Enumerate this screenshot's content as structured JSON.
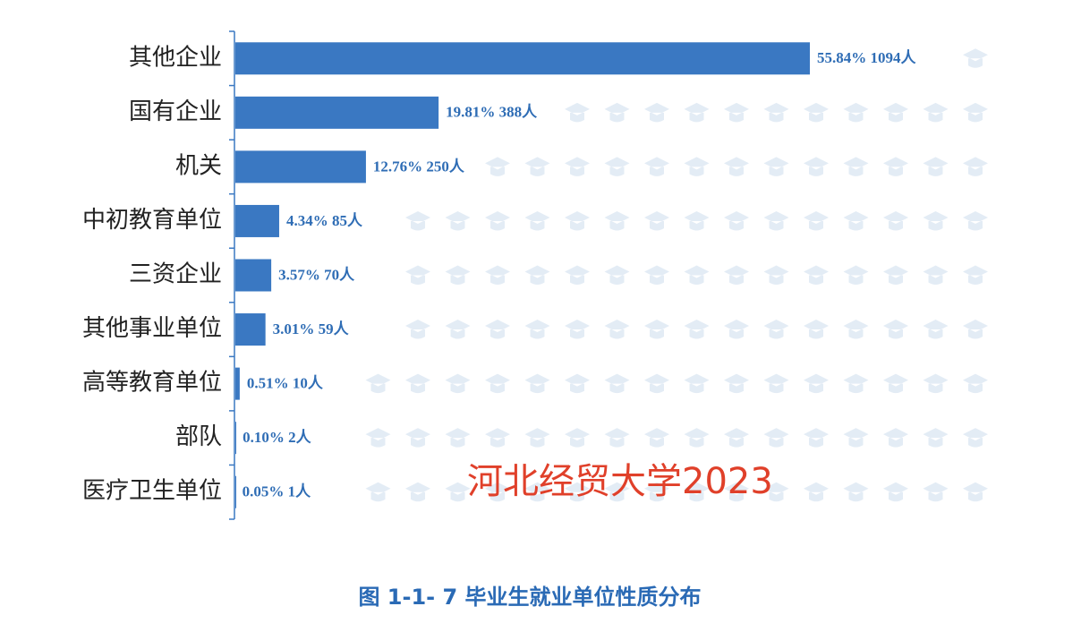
{
  "chart_data": {
    "type": "bar",
    "orientation": "horizontal",
    "title": "图 1-1- 7 毕业生就业单位性质分布",
    "annotation": "河北经贸大学2023",
    "categories": [
      "其他企业",
      "国有企业",
      "机关",
      "中初教育单位",
      "三资企业",
      "其他事业单位",
      "高等教育单位",
      "部队",
      "医疗卫生单位"
    ],
    "values": [
      55.84,
      19.81,
      12.76,
      4.34,
      3.57,
      3.01,
      0.51,
      0.1,
      0.05
    ],
    "value_labels": [
      "55.84% 1094人",
      "19.81% 388人",
      "12.76% 250人",
      "4.34% 85人",
      "3.57% 70人",
      "3.01% 59人",
      "0.51% 10人",
      "0.10% 2人",
      "0.05% 1人"
    ],
    "color": "#3a78c2"
  }
}
